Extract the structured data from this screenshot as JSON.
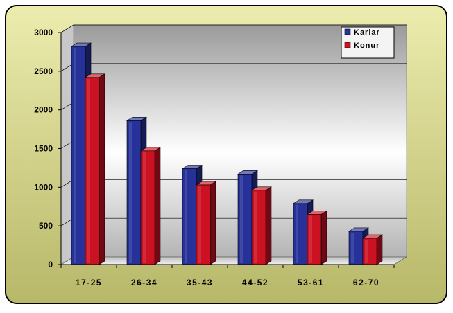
{
  "chart_data": {
    "type": "bar",
    "title": "",
    "xlabel": "",
    "ylabel": "",
    "categories": [
      "17-25",
      "26-34",
      "35-43",
      "44-52",
      "53-61",
      "62-70"
    ],
    "series": [
      {
        "name": "Karlar",
        "values": [
          2820,
          1860,
          1240,
          1170,
          790,
          430
        ],
        "color": "#26329a"
      },
      {
        "name": "Konur",
        "values": [
          2420,
          1470,
          1030,
          960,
          650,
          340
        ],
        "color": "#cc1122"
      }
    ],
    "ylim": [
      0,
      3000
    ],
    "yticks": [
      0,
      500,
      1000,
      1500,
      2000,
      2500,
      3000
    ],
    "grid": true,
    "legend_position": "top-right",
    "style": "3d-clustered-column",
    "background_colors": {
      "outer_top": "#ececae",
      "outer_bottom": "#b8b86a",
      "plot": "#e6e6e6"
    }
  }
}
